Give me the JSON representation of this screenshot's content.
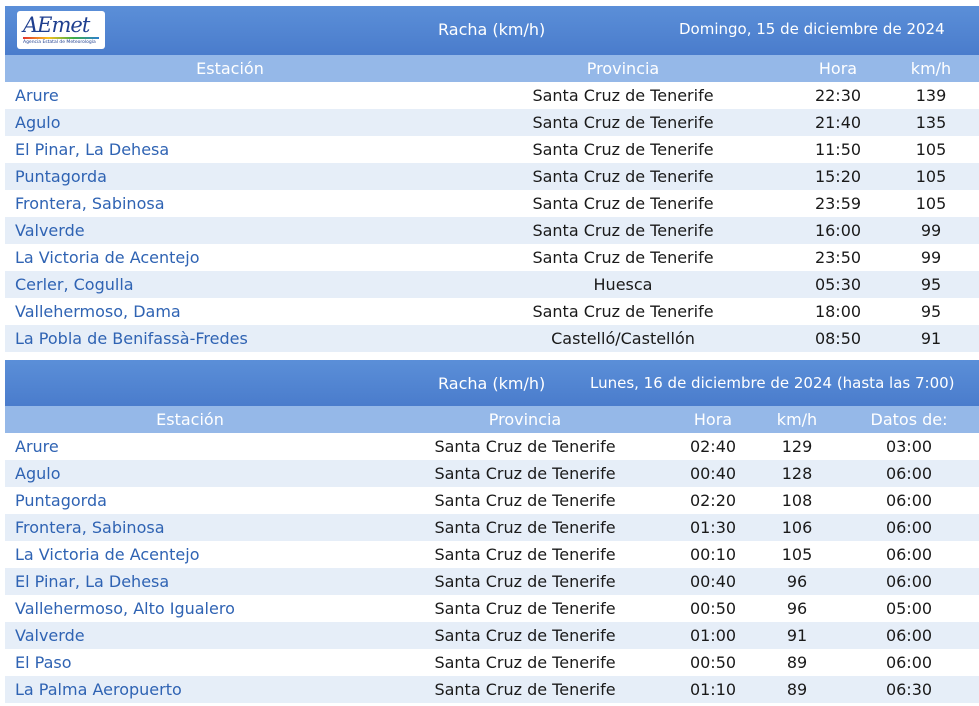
{
  "logo": {
    "mark": "AEmet",
    "subtitle": "Agencia Estatal de Meteorología"
  },
  "colors": {
    "header_bar": "#4a7ccc",
    "column_header": "#95b8e8",
    "stripe": "#e6eef8",
    "station_text": "#2f63b3"
  },
  "table1": {
    "title": "Racha (km/h)",
    "date": "Domingo, 15 de diciembre de 2024",
    "headers": {
      "station": "Estación",
      "province": "Provincia",
      "time": "Hora",
      "speed": "km/h"
    },
    "rows": [
      {
        "station": "Arure",
        "province": "Santa Cruz de Tenerife",
        "time": "22:30",
        "speed": "139"
      },
      {
        "station": "Agulo",
        "province": "Santa Cruz de Tenerife",
        "time": "21:40",
        "speed": "135"
      },
      {
        "station": "El Pinar, La Dehesa",
        "province": "Santa Cruz de Tenerife",
        "time": "11:50",
        "speed": "105"
      },
      {
        "station": "Puntagorda",
        "province": "Santa Cruz de Tenerife",
        "time": "15:20",
        "speed": "105"
      },
      {
        "station": "Frontera, Sabinosa",
        "province": "Santa Cruz de Tenerife",
        "time": "23:59",
        "speed": "105"
      },
      {
        "station": "Valverde",
        "province": "Santa Cruz de Tenerife",
        "time": "16:00",
        "speed": "99"
      },
      {
        "station": "La Victoria de Acentejo",
        "province": "Santa Cruz de Tenerife",
        "time": "23:50",
        "speed": "99"
      },
      {
        "station": "Cerler, Cogulla",
        "province": "Huesca",
        "time": "05:30",
        "speed": "95"
      },
      {
        "station": "Vallehermoso, Dama",
        "province": "Santa Cruz de Tenerife",
        "time": "18:00",
        "speed": "95"
      },
      {
        "station": "La Pobla de Benifassà-Fredes",
        "province": "Castelló/Castellón",
        "time": "08:50",
        "speed": "91"
      }
    ]
  },
  "table2": {
    "title": "Racha (km/h)",
    "date": "Lunes, 16 de diciembre de 2024 (hasta las 7:00)",
    "headers": {
      "station": "Estación",
      "province": "Provincia",
      "time": "Hora",
      "speed": "km/h",
      "data": "Datos de:"
    },
    "rows": [
      {
        "station": "Arure",
        "province": "Santa Cruz de Tenerife",
        "time": "02:40",
        "speed": "129",
        "data": "03:00"
      },
      {
        "station": "Agulo",
        "province": "Santa Cruz de Tenerife",
        "time": "00:40",
        "speed": "128",
        "data": "06:00"
      },
      {
        "station": "Puntagorda",
        "province": "Santa Cruz de Tenerife",
        "time": "02:20",
        "speed": "108",
        "data": "06:00"
      },
      {
        "station": "Frontera, Sabinosa",
        "province": "Santa Cruz de Tenerife",
        "time": "01:30",
        "speed": "106",
        "data": "06:00"
      },
      {
        "station": "La Victoria de Acentejo",
        "province": "Santa Cruz de Tenerife",
        "time": "00:10",
        "speed": "105",
        "data": "06:00"
      },
      {
        "station": "El Pinar, La Dehesa",
        "province": "Santa Cruz de Tenerife",
        "time": "00:40",
        "speed": "96",
        "data": "06:00"
      },
      {
        "station": "Vallehermoso, Alto Igualero",
        "province": "Santa Cruz de Tenerife",
        "time": "00:50",
        "speed": "96",
        "data": "05:00"
      },
      {
        "station": "Valverde",
        "province": "Santa Cruz de Tenerife",
        "time": "01:00",
        "speed": "91",
        "data": "06:00"
      },
      {
        "station": "El Paso",
        "province": "Santa Cruz de Tenerife",
        "time": "00:50",
        "speed": "89",
        "data": "06:00"
      },
      {
        "station": "La Palma Aeropuerto",
        "province": "Santa Cruz de Tenerife",
        "time": "01:10",
        "speed": "89",
        "data": "06:30"
      }
    ]
  }
}
